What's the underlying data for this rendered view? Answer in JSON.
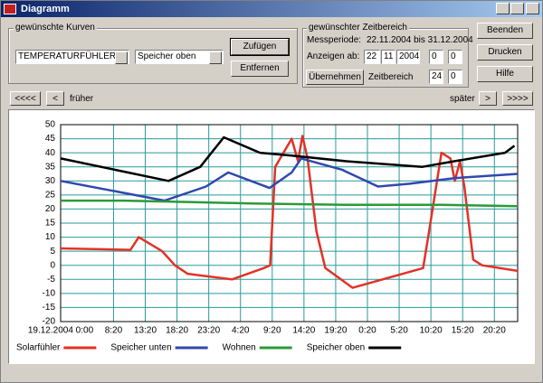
{
  "window": {
    "title": "Diagramm"
  },
  "curves": {
    "label": "gewünschte Kurven",
    "sensor": "TEMPERATURFÜHLER",
    "curve": "Speicher oben",
    "add": "Zufügen",
    "remove": "Entfernen"
  },
  "timerange": {
    "label": "gewünschter Zeitbereich",
    "period_label": "Messperiode:",
    "period": "22.11.2004 bis 31.12.2004",
    "show_from_label": "Anzeigen ab:",
    "day": "22",
    "month": "11",
    "year": "2004",
    "hour": "0",
    "minute": "0",
    "apply": "Übernehmen",
    "range_label": "Zeitbereich",
    "range_hours": "24",
    "range_minutes": "0"
  },
  "buttons": {
    "close": "Beenden",
    "print": "Drucken",
    "help": "Hilfe"
  },
  "navigation": {
    "first": "<<<<",
    "prev": "<",
    "earlier": "früher",
    "later": "später",
    "next": ">",
    "last": ">>>>"
  },
  "chart_data": {
    "type": "line",
    "xlim": [
      0,
      72
    ],
    "xticks": [
      {
        "value": 0,
        "label": "19.12.2004 0:00"
      },
      {
        "value": 8.333,
        "label": "8:20"
      },
      {
        "value": 13.333,
        "label": "13:20"
      },
      {
        "value": 18.333,
        "label": "18:20"
      },
      {
        "value": 23.333,
        "label": "23:20"
      },
      {
        "value": 28.333,
        "label": "4:20"
      },
      {
        "value": 33.333,
        "label": "9:20"
      },
      {
        "value": 38.333,
        "label": "14:20"
      },
      {
        "value": 43.333,
        "label": "19:20"
      },
      {
        "value": 48.333,
        "label": "0:20"
      },
      {
        "value": 53.333,
        "label": "5:20"
      },
      {
        "value": 58.333,
        "label": "10:20"
      },
      {
        "value": 63.333,
        "label": "15:20"
      },
      {
        "value": 68.333,
        "label": "20:20"
      }
    ],
    "ylim": [
      -20,
      50
    ],
    "yticks": [
      -20,
      -15,
      -10,
      -5,
      0,
      5,
      10,
      15,
      20,
      25,
      30,
      35,
      40,
      45,
      50
    ],
    "grid": true,
    "series": [
      {
        "name": "Solarfühler",
        "color": "#e23228",
        "x": [
          0,
          11,
          12.3,
          16,
          18,
          20,
          27,
          32,
          33,
          33.8,
          36.4,
          37.4,
          38.1,
          38.9,
          40.3,
          41.7,
          46,
          57.1,
          57.9,
          60,
          61.4,
          62.1,
          62.9,
          63.6,
          65,
          66.4,
          72
        ],
        "values": [
          6,
          5.5,
          10,
          5,
          0,
          -3,
          -5,
          -1,
          0,
          35,
          45,
          37,
          46,
          38,
          12,
          -1,
          -8,
          -1,
          10,
          40,
          38,
          30,
          37,
          28,
          2,
          0,
          -2
        ]
      },
      {
        "name": "Speicher unten",
        "color": "#3048ae",
        "x": [
          0,
          16.4,
          22.9,
          26.4,
          32.9,
          36.4,
          37.9,
          44.3,
          50,
          55,
          62,
          72
        ],
        "values": [
          30,
          23,
          28,
          33,
          27.5,
          33,
          38,
          34,
          28,
          29,
          31,
          32.5
        ]
      },
      {
        "name": "Wohnen",
        "color": "#2a9a3a",
        "x": [
          0,
          10,
          20,
          30,
          45,
          60,
          72
        ],
        "values": [
          23,
          23,
          22.5,
          22,
          21.5,
          21.5,
          21
        ]
      },
      {
        "name": "Speicher oben",
        "color": "#000000",
        "x": [
          0,
          17,
          22,
          25.7,
          31.4,
          36.4,
          45,
          57,
          62,
          70,
          71.5
        ],
        "values": [
          38,
          30,
          35,
          45.5,
          40,
          39,
          37,
          35,
          37,
          40,
          42.5
        ]
      }
    ]
  }
}
